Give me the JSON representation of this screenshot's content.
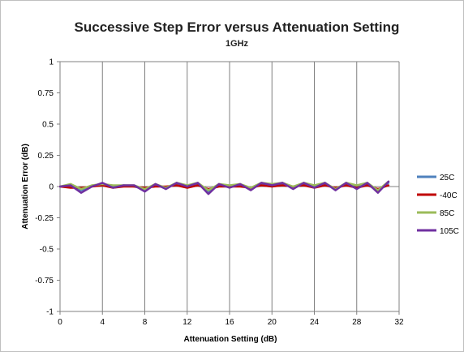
{
  "chart_data": {
    "type": "line",
    "title": "Successive Step Error versus Attenuation Setting",
    "subtitle": "1GHz",
    "xlabel": "Attenuation Setting (dB)",
    "ylabel": "Attenuation Error (dB)",
    "xlim": [
      0,
      32
    ],
    "ylim": [
      -1,
      1
    ],
    "x_ticks": [
      0,
      4,
      8,
      12,
      16,
      20,
      24,
      28,
      32
    ],
    "y_ticks": [
      1,
      0.75,
      0.5,
      0.25,
      0,
      -0.25,
      -0.5,
      -0.75,
      -1
    ],
    "grid": "vertical",
    "legend_position": "right",
    "x": [
      0,
      1,
      2,
      3,
      4,
      5,
      6,
      7,
      8,
      9,
      10,
      11,
      12,
      13,
      14,
      15,
      16,
      17,
      18,
      19,
      20,
      21,
      22,
      23,
      24,
      25,
      26,
      27,
      28,
      29,
      30,
      31
    ],
    "series": [
      {
        "name": "25C",
        "color": "#4f81bd",
        "values": [
          0,
          0.01,
          -0.03,
          0,
          0.02,
          0,
          0.01,
          0,
          -0.02,
          0.01,
          -0.01,
          0.02,
          0,
          0.02,
          -0.04,
          0.01,
          0,
          0.01,
          -0.02,
          0.02,
          0.01,
          0.02,
          -0.01,
          0.02,
          0,
          0.02,
          -0.02,
          0.02,
          0,
          0.02,
          -0.04,
          0.03
        ]
      },
      {
        "name": "-40C",
        "color": "#c00000",
        "values": [
          0,
          -0.01,
          -0.01,
          0,
          0.01,
          -0.01,
          0,
          0,
          -0.01,
          0,
          0,
          0.01,
          -0.01,
          0.01,
          -0.02,
          0,
          0,
          0,
          -0.01,
          0.01,
          0,
          0.01,
          0,
          0.01,
          -0.01,
          0.01,
          -0.01,
          0.01,
          -0.01,
          0.01,
          -0.02,
          0.01
        ]
      },
      {
        "name": "85C",
        "color": "#9bbb59",
        "values": [
          0,
          0.02,
          -0.02,
          0.01,
          0.02,
          0.01,
          0.01,
          0.01,
          -0.02,
          0.02,
          -0.01,
          0.03,
          0.01,
          0.03,
          -0.03,
          0.02,
          0.01,
          0.02,
          -0.01,
          0.03,
          0.02,
          0.03,
          0,
          0.03,
          0.01,
          0.03,
          -0.02,
          0.03,
          0.01,
          0.03,
          -0.03,
          0.04
        ]
      },
      {
        "name": "105C",
        "color": "#7030a0",
        "values": [
          0,
          0.01,
          -0.05,
          0,
          0.03,
          -0.01,
          0.01,
          0.01,
          -0.04,
          0.02,
          -0.02,
          0.03,
          0,
          0.03,
          -0.06,
          0.02,
          -0.01,
          0.02,
          -0.03,
          0.03,
          0.01,
          0.03,
          -0.02,
          0.03,
          -0.01,
          0.03,
          -0.03,
          0.03,
          -0.02,
          0.03,
          -0.05,
          0.04
        ]
      }
    ]
  }
}
